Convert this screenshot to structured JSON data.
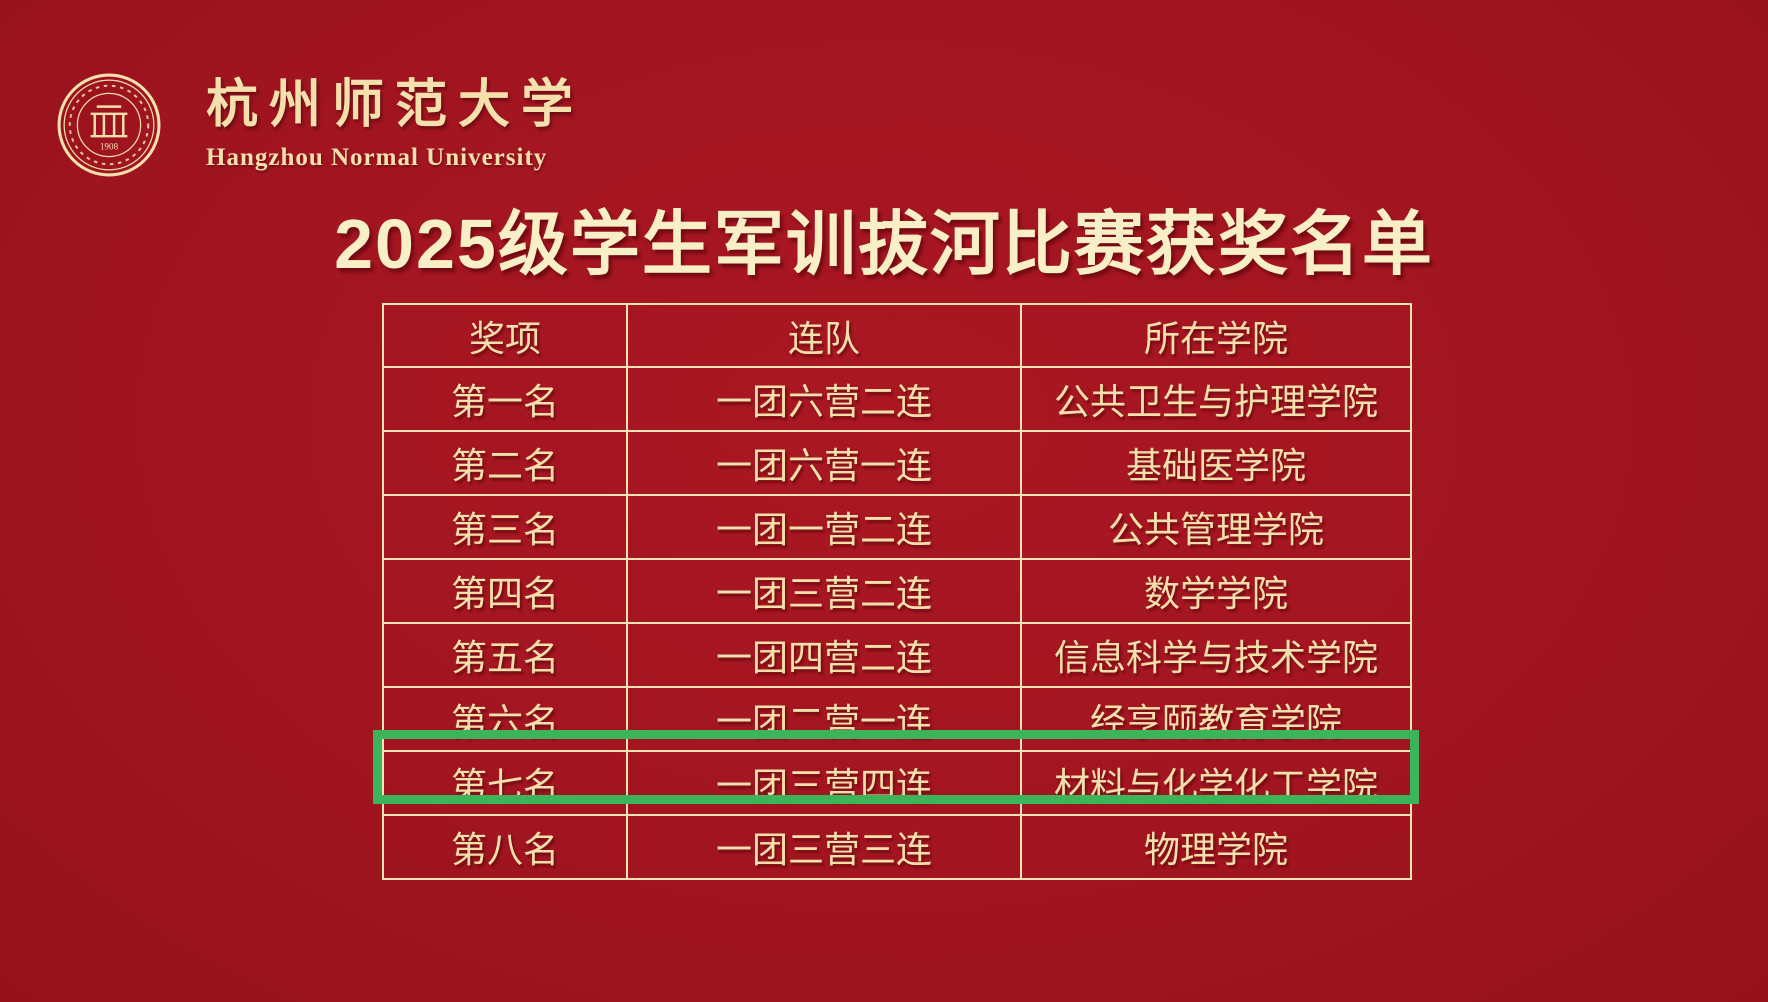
{
  "page": {
    "background_color": "#a21520",
    "border_color": "#f3e4b6",
    "text_color": "#f3e0ac",
    "highlight_color": "#3cb45a"
  },
  "header": {
    "logo_icon": "university-seal-icon",
    "seal_year": "1908",
    "university_name_zh": "杭州师范大学",
    "university_name_en": "Hangzhou Normal University"
  },
  "title": "2025级学生军训拔河比赛获奖名单",
  "table": {
    "columns": [
      "奖项",
      "连队",
      "所在学院"
    ],
    "rows": [
      {
        "rank": "第一名",
        "company": "一团六营二连",
        "college": "公共卫生与护理学院",
        "highlighted": false
      },
      {
        "rank": "第二名",
        "company": "一团六营一连",
        "college": "基础医学院",
        "highlighted": false
      },
      {
        "rank": "第三名",
        "company": "一团一营二连",
        "college": "公共管理学院",
        "highlighted": false
      },
      {
        "rank": "第四名",
        "company": "一团三营二连",
        "college": "数学学院",
        "highlighted": false
      },
      {
        "rank": "第五名",
        "company": "一团四营二连",
        "college": "信息科学与技术学院",
        "highlighted": false
      },
      {
        "rank": "第六名",
        "company": "一团二营一连",
        "college": "经亨颐教育学院",
        "highlighted": false
      },
      {
        "rank": "第七名",
        "company": "一团三营四连",
        "college": "材料与化学化工学院",
        "highlighted": true
      },
      {
        "rank": "第八名",
        "company": "一团三营三连",
        "college": "物理学院",
        "highlighted": false
      }
    ]
  }
}
